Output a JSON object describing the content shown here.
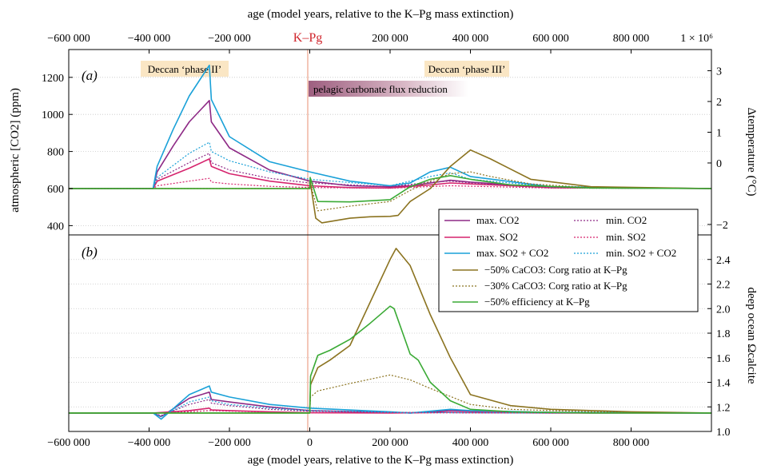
{
  "chart_data": [
    {
      "panel": "(a)",
      "type": "line",
      "xlabel_top": "age (model years, relative to the K–Pg mass extinction)",
      "ylabel_left": "atmospheric [CO2] (ppm)",
      "ylabel_right": "Δtemperature (°C)",
      "xlim": [
        -600000,
        1000000
      ],
      "ylim_left": [
        350,
        1350
      ],
      "ylim_right": [
        -2.34,
        3.69
      ],
      "x_ticks": [
        -600000,
        -400000,
        -200000,
        0,
        200000,
        400000,
        600000,
        800000,
        1000000
      ],
      "x_tick_labels": [
        "−600 000",
        "−400 000",
        "−200 000",
        "",
        "200 000",
        "400 000",
        "600 000",
        "800 000",
        "1 × 10⁶"
      ],
      "y_ticks_left": [
        400,
        600,
        800,
        1000,
        1200
      ],
      "y_ticks_right": [
        -2,
        0,
        1,
        2,
        3
      ],
      "grid": "dotted horizontal",
      "kpg_label": "K–Pg",
      "annotations": [
        "Deccan ‘phase II’",
        "Deccan ‘phase III’",
        "pelagic carbonate flux reduction"
      ],
      "series": [
        {
          "name": "max. CO2",
          "color": "#8e2a86",
          "dash": false,
          "x": [
            -600000,
            -390000,
            -380000,
            -340000,
            -300000,
            -250000,
            -245000,
            -200000,
            -100000,
            0,
            100000,
            200000,
            250000,
            350000,
            400000,
            600000,
            1000000
          ],
          "y": [
            600,
            600,
            690,
            830,
            960,
            1075,
            960,
            820,
            700,
            640,
            615,
            610,
            615,
            645,
            635,
            605,
            600
          ]
        },
        {
          "name": "max. SO2",
          "color": "#d6246e",
          "dash": false,
          "x": [
            -600000,
            -390000,
            -380000,
            -300000,
            -250000,
            -245000,
            -200000,
            -100000,
            0,
            100000,
            200000,
            300000,
            350000,
            400000,
            600000,
            1000000
          ],
          "y": [
            600,
            600,
            640,
            710,
            760,
            720,
            680,
            640,
            615,
            605,
            603,
            620,
            630,
            625,
            605,
            600
          ]
        },
        {
          "name": "max. SO2 + CO2",
          "color": "#1aa1d8",
          "dash": false,
          "x": [
            -600000,
            -390000,
            -380000,
            -340000,
            -300000,
            -250000,
            -245000,
            -200000,
            -100000,
            0,
            100000,
            200000,
            250000,
            300000,
            350000,
            400000,
            600000,
            1000000
          ],
          "y": [
            600,
            600,
            720,
            920,
            1100,
            1265,
            1080,
            880,
            745,
            690,
            640,
            615,
            630,
            690,
            715,
            665,
            610,
            600
          ]
        },
        {
          "name": "min. CO2",
          "color": "#8e2a86",
          "dash": true,
          "x": [
            -600000,
            -390000,
            -380000,
            -300000,
            -250000,
            -245000,
            -200000,
            -100000,
            0,
            200000,
            300000,
            350000,
            400000,
            600000,
            1000000
          ],
          "y": [
            600,
            600,
            650,
            740,
            790,
            740,
            700,
            655,
            630,
            610,
            635,
            640,
            630,
            605,
            600
          ]
        },
        {
          "name": "min. SO2",
          "color": "#d6246e",
          "dash": true,
          "x": [
            -600000,
            -390000,
            -380000,
            -300000,
            -250000,
            -245000,
            -200000,
            -100000,
            0,
            200000,
            350000,
            600000,
            1000000
          ],
          "y": [
            600,
            600,
            615,
            640,
            655,
            635,
            625,
            612,
            606,
            602,
            615,
            603,
            600
          ]
        },
        {
          "name": "min. SO2 + CO2",
          "color": "#1aa1d8",
          "dash": true,
          "x": [
            -600000,
            -390000,
            -380000,
            -300000,
            -250000,
            -245000,
            -200000,
            -100000,
            0,
            200000,
            300000,
            350000,
            400000,
            600000,
            1000000
          ],
          "y": [
            600,
            600,
            660,
            790,
            850,
            800,
            750,
            690,
            650,
            615,
            665,
            685,
            650,
            610,
            600
          ]
        },
        {
          "name": "−50% CaCO3: Corg ratio at K–Pg",
          "color": "#8b7320",
          "dash": false,
          "x": [
            -600000,
            0,
            1000,
            15000,
            30000,
            100000,
            150000,
            200000,
            220000,
            250000,
            300000,
            350000,
            400000,
            450000,
            550000,
            700000,
            1000000
          ],
          "y": [
            600,
            600,
            640,
            440,
            415,
            440,
            448,
            450,
            455,
            530,
            600,
            720,
            808,
            760,
            650,
            610,
            600
          ]
        },
        {
          "name": "−30% CaCO3: Corg ratio at K–Pg",
          "color": "#8b7320",
          "dash": true,
          "x": [
            -600000,
            0,
            1000,
            20000,
            100000,
            200000,
            250000,
            300000,
            350000,
            400000,
            450000,
            550000,
            700000,
            1000000
          ],
          "y": [
            600,
            600,
            630,
            480,
            505,
            530,
            590,
            640,
            680,
            690,
            665,
            625,
            605,
            600
          ]
        },
        {
          "name": "−50% efficiency at K–Pg",
          "color": "#3aaa35",
          "dash": false,
          "x": [
            -600000,
            0,
            1000,
            20000,
            100000,
            200000,
            250000,
            300000,
            350000,
            400000,
            500000,
            700000,
            1000000
          ],
          "y": [
            600,
            600,
            660,
            530,
            528,
            540,
            610,
            650,
            670,
            650,
            620,
            603,
            600
          ]
        }
      ]
    },
    {
      "panel": "(b)",
      "type": "line",
      "xlabel": "age (model years, relative to the K–Pg mass extinction)",
      "ylabel_right": "deep ocean Ωcalcite",
      "xlim": [
        -600000,
        1000000
      ],
      "ylim": [
        1.0,
        2.6
      ],
      "x_ticks": [
        -600000,
        -400000,
        -200000,
        0,
        200000,
        400000,
        600000,
        800000
      ],
      "x_tick_labels": [
        "−600 000",
        "−400 000",
        "−200 000",
        "0",
        "200 000",
        "400 000",
        "600 000",
        "800 000"
      ],
      "y_ticks_right": [
        1.0,
        1.2,
        1.4,
        1.6,
        1.8,
        2.0,
        2.2,
        2.4
      ],
      "y_tick_labels": [
        "1.0",
        "1.2",
        "1.4",
        "1.6",
        "1.8",
        "2.0",
        "2.2",
        "2.4"
      ],
      "series": [
        {
          "name": "max. CO2",
          "color": "#8e2a86",
          "dash": false,
          "x": [
            -600000,
            -390000,
            -370000,
            -300000,
            -250000,
            -245000,
            -200000,
            -100000,
            0,
            200000,
            250000,
            350000,
            400000,
            600000,
            1000000
          ],
          "y": [
            1.15,
            1.15,
            1.12,
            1.27,
            1.32,
            1.26,
            1.24,
            1.2,
            1.17,
            1.155,
            1.15,
            1.17,
            1.165,
            1.155,
            1.15
          ]
        },
        {
          "name": "max. SO2",
          "color": "#d6246e",
          "dash": false,
          "x": [
            -600000,
            -390000,
            -300000,
            -250000,
            -245000,
            -200000,
            -100000,
            0,
            200000,
            350000,
            600000,
            1000000
          ],
          "y": [
            1.15,
            1.15,
            1.17,
            1.19,
            1.175,
            1.17,
            1.16,
            1.152,
            1.15,
            1.155,
            1.15,
            1.15
          ]
        },
        {
          "name": "max. SO2 + CO2",
          "color": "#1aa1d8",
          "dash": false,
          "x": [
            -600000,
            -390000,
            -370000,
            -300000,
            -250000,
            -245000,
            -200000,
            -100000,
            0,
            200000,
            250000,
            350000,
            400000,
            600000,
            1000000
          ],
          "y": [
            1.15,
            1.15,
            1.1,
            1.3,
            1.37,
            1.32,
            1.28,
            1.22,
            1.19,
            1.16,
            1.15,
            1.18,
            1.17,
            1.155,
            1.15
          ]
        },
        {
          "name": "min. CO2",
          "color": "#8e2a86",
          "dash": true,
          "x": [
            -600000,
            -390000,
            -370000,
            -300000,
            -250000,
            -245000,
            -200000,
            -100000,
            0,
            200000,
            600000,
            1000000
          ],
          "y": [
            1.15,
            1.15,
            1.13,
            1.22,
            1.26,
            1.23,
            1.21,
            1.18,
            1.165,
            1.155,
            1.15,
            1.15
          ]
        },
        {
          "name": "min. SO2",
          "color": "#d6246e",
          "dash": true,
          "x": [
            -600000,
            -390000,
            -300000,
            -250000,
            -200000,
            -100000,
            0,
            1000000
          ],
          "y": [
            1.15,
            1.15,
            1.16,
            1.17,
            1.165,
            1.158,
            1.152,
            1.15
          ]
        },
        {
          "name": "min. SO2 + CO2",
          "color": "#1aa1d8",
          "dash": true,
          "x": [
            -600000,
            -390000,
            -370000,
            -300000,
            -250000,
            -245000,
            -200000,
            -100000,
            0,
            200000,
            600000,
            1000000
          ],
          "y": [
            1.15,
            1.15,
            1.12,
            1.24,
            1.28,
            1.25,
            1.22,
            1.19,
            1.17,
            1.155,
            1.15,
            1.15
          ]
        },
        {
          "name": "−50% CaCO3: Corg ratio at K–Pg",
          "color": "#8b7320",
          "dash": false,
          "x": [
            -600000,
            0,
            2000,
            20000,
            50000,
            100000,
            150000,
            200000,
            215000,
            250000,
            300000,
            350000,
            400000,
            500000,
            600000,
            800000,
            1000000
          ],
          "y": [
            1.15,
            1.15,
            1.38,
            1.52,
            1.58,
            1.7,
            2.05,
            2.4,
            2.49,
            2.35,
            1.95,
            1.6,
            1.3,
            1.21,
            1.18,
            1.16,
            1.15
          ]
        },
        {
          "name": "−30% CaCO3: Corg ratio at K–Pg",
          "color": "#8b7320",
          "dash": true,
          "x": [
            -600000,
            0,
            2000,
            20000,
            100000,
            200000,
            250000,
            300000,
            400000,
            500000,
            700000,
            1000000
          ],
          "y": [
            1.15,
            1.15,
            1.28,
            1.33,
            1.39,
            1.46,
            1.42,
            1.35,
            1.22,
            1.18,
            1.16,
            1.15
          ]
        },
        {
          "name": "−50% efficiency at K–Pg",
          "color": "#3aaa35",
          "dash": false,
          "x": [
            -600000,
            0,
            2000,
            20000,
            50000,
            100000,
            150000,
            200000,
            210000,
            250000,
            270000,
            300000,
            350000,
            400000,
            500000,
            700000,
            1000000
          ],
          "y": [
            1.15,
            1.15,
            1.45,
            1.62,
            1.66,
            1.75,
            1.88,
            2.02,
            2.0,
            1.63,
            1.58,
            1.4,
            1.25,
            1.18,
            1.16,
            1.15,
            1.15
          ]
        }
      ]
    }
  ]
}
